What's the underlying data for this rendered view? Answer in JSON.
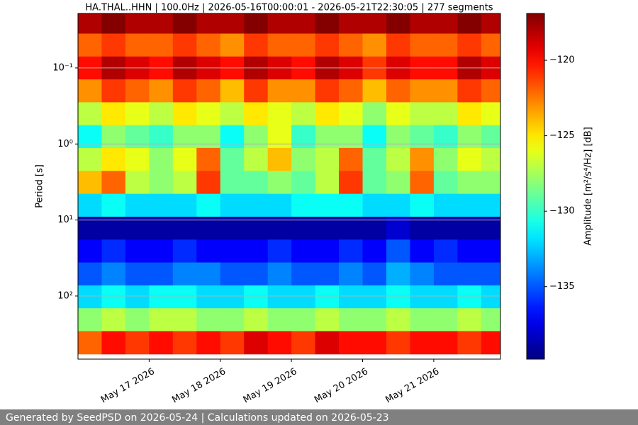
{
  "chart_data": {
    "type": "heatmap",
    "title": "HA.THAL..HHN | 100.0Hz | 2026-05-16T00:00:01 - 2026-05-21T22:30:05 | 277 segments",
    "ylabel": "Period [s]",
    "colorbar_label": "Amplitude [m²/s⁴/Hz] [dB]",
    "footer": "Generated by SeedPSD on 2026-05-24 | Calculations updated on 2026-05-23",
    "cmap": "jet",
    "yscale": "log",
    "yaxis_inverted": true,
    "grid": true,
    "xlim": [
      "2026-05-16T00:00:01",
      "2026-05-21T22:30:05"
    ],
    "xticks": [
      {
        "value": "2026-05-17T00:00",
        "label": "May 17 2026"
      },
      {
        "value": "2026-05-18T00:00",
        "label": "May 18 2026"
      },
      {
        "value": "2026-05-19T00:00",
        "label": "May 19 2026"
      },
      {
        "value": "2026-05-20T00:00",
        "label": "May 20 2026"
      },
      {
        "value": "2026-05-21T00:00",
        "label": "May 21 2026"
      }
    ],
    "ylim": [
      0.0192,
      676
    ],
    "yticks": [
      {
        "value": 0.1,
        "label": "10⁻¹"
      },
      {
        "value": 1,
        "label": "10⁰"
      },
      {
        "value": 10,
        "label": "10¹"
      },
      {
        "value": 100,
        "label": "10²"
      }
    ],
    "clim": [
      -139.8,
      -116.9
    ],
    "cticks": [
      {
        "value": -120,
        "label": "−120"
      },
      {
        "value": -125,
        "label": "−125"
      },
      {
        "value": -130,
        "label": "−130"
      },
      {
        "value": -135,
        "label": "−135"
      }
    ],
    "x": [
      "2026-05-16T04:00",
      "2026-05-16T12:00",
      "2026-05-16T20:00",
      "2026-05-17T04:00",
      "2026-05-17T12:00",
      "2026-05-17T20:00",
      "2026-05-18T04:00",
      "2026-05-18T12:00",
      "2026-05-18T20:00",
      "2026-05-19T04:00",
      "2026-05-19T12:00",
      "2026-05-19T20:00",
      "2026-05-20T04:00",
      "2026-05-20T12:00",
      "2026-05-20T20:00",
      "2026-05-21T04:00",
      "2026-05-21T12:00",
      "2026-05-21T20:00"
    ],
    "y": [
      0.025,
      0.05,
      0.1,
      0.2,
      0.4,
      0.8,
      1.6,
      3.2,
      6.4,
      12.8,
      25.6,
      51.2,
      102.4,
      204.8,
      409.6
    ],
    "z": [
      [
        -118,
        -117,
        -118,
        -118,
        -117,
        -118,
        -118,
        -117,
        -118,
        -118,
        -117,
        -118,
        -118,
        -117,
        -118,
        -118,
        -117,
        -118
      ],
      [
        -122,
        -121,
        -122,
        -122,
        -121,
        -122,
        -123,
        -121,
        -122,
        -122,
        -121,
        -122,
        -123,
        -121,
        -122,
        -122,
        -121,
        -122
      ],
      [
        -120,
        -118,
        -119,
        -120,
        -118,
        -119,
        -120,
        -118,
        -119,
        -120,
        -118,
        -119,
        -121,
        -119,
        -120,
        -120,
        -118,
        -119
      ],
      [
        -123,
        -121,
        -122,
        -123,
        -121,
        -122,
        -124,
        -121,
        -123,
        -123,
        -121,
        -122,
        -124,
        -122,
        -123,
        -123,
        -121,
        -122
      ],
      [
        -127,
        -125,
        -126,
        -127,
        -125,
        -126,
        -127,
        -125,
        -126,
        -127,
        -125,
        -126,
        -128,
        -126,
        -127,
        -127,
        -125,
        -126
      ],
      [
        -131,
        -128,
        -129,
        -130,
        -128,
        -128,
        -131,
        -128,
        -126,
        -130,
        -128,
        -128,
        -131,
        -128,
        -129,
        -130,
        -128,
        -129
      ],
      [
        -127,
        -125,
        -126,
        -128,
        -126,
        -122,
        -129,
        -127,
        -124,
        -128,
        -127,
        -122,
        -129,
        -127,
        -123,
        -128,
        -126,
        -127
      ],
      [
        -124,
        -122,
        -127,
        -128,
        -127,
        -121,
        -129,
        -129,
        -128,
        -129,
        -127,
        -121,
        -129,
        -128,
        -122,
        -129,
        -128,
        -128
      ],
      [
        -132,
        -131,
        -132,
        -132,
        -132,
        -131,
        -132,
        -132,
        -132,
        -131,
        -131,
        -131,
        -132,
        -132,
        -131,
        -132,
        -132,
        -132
      ],
      [
        -139,
        -139,
        -139,
        -139,
        -139,
        -139,
        -139,
        -139,
        -139,
        -139,
        -139,
        -139,
        -139,
        -138,
        -139,
        -139,
        -139,
        -139
      ],
      [
        -137,
        -136,
        -137,
        -137,
        -136,
        -137,
        -137,
        -137,
        -136,
        -137,
        -137,
        -136,
        -137,
        -135,
        -137,
        -136,
        -137,
        -137
      ],
      [
        -135,
        -134,
        -135,
        -135,
        -134,
        -134,
        -135,
        -135,
        -134,
        -135,
        -135,
        -134,
        -135,
        -133,
        -134,
        -135,
        -135,
        -135
      ],
      [
        -132,
        -131,
        -132,
        -131,
        -131,
        -132,
        -132,
        -131,
        -132,
        -132,
        -131,
        -132,
        -132,
        -131,
        -132,
        -132,
        -131,
        -132
      ],
      [
        -128,
        -127,
        -128,
        -127,
        -127,
        -128,
        -128,
        -127,
        -128,
        -128,
        -127,
        -128,
        -128,
        -127,
        -128,
        -128,
        -127,
        -128
      ],
      [
        -122,
        -120,
        -121,
        -120,
        -121,
        -120,
        -121,
        -119,
        -120,
        -121,
        -119,
        -120,
        -120,
        -121,
        -120,
        -120,
        -121,
        -120
      ]
    ]
  }
}
